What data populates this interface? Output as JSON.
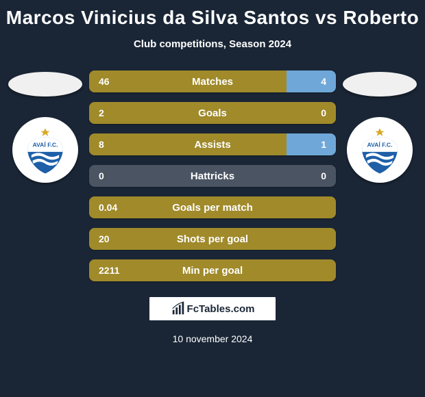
{
  "title": "Marcos Vinicius da Silva Santos vs Roberto",
  "subtitle": "Club competitions, Season 2024",
  "colors": {
    "background": "#1a2636",
    "player1_bar": "#a08a2a",
    "player2_bar": "#6fa8d8",
    "neutral_bar": "#4a5462",
    "text": "#ffffff",
    "badge_primary": "#1e5fa8",
    "badge_secondary": "#ffffff",
    "badge_star": "#d8a92a"
  },
  "club_left": {
    "name": "Avaí FC",
    "badge_text": "AVAÍ F.C."
  },
  "club_right": {
    "name": "Avaí FC",
    "badge_text": "AVAÍ F.C."
  },
  "stats": [
    {
      "label": "Matches",
      "left_val": "46",
      "right_val": "4",
      "left_pct": 80,
      "right_pct": 20,
      "right_shown": true
    },
    {
      "label": "Goals",
      "left_val": "2",
      "right_val": "0",
      "left_pct": 100,
      "right_pct": 0,
      "right_shown": true
    },
    {
      "label": "Assists",
      "left_val": "8",
      "right_val": "1",
      "left_pct": 80,
      "right_pct": 20,
      "right_shown": true
    },
    {
      "label": "Hattricks",
      "left_val": "0",
      "right_val": "0",
      "left_pct": 0,
      "right_pct": 0,
      "right_shown": true
    },
    {
      "label": "Goals per match",
      "left_val": "0.04",
      "right_val": "",
      "left_pct": 100,
      "right_pct": 0,
      "right_shown": false
    },
    {
      "label": "Shots per goal",
      "left_val": "20",
      "right_val": "",
      "left_pct": 100,
      "right_pct": 0,
      "right_shown": false
    },
    {
      "label": "Min per goal",
      "left_val": "2211",
      "right_val": "",
      "left_pct": 100,
      "right_pct": 0,
      "right_shown": false
    }
  ],
  "footer": {
    "site": "FcTables.com"
  },
  "date": "10 november 2024"
}
